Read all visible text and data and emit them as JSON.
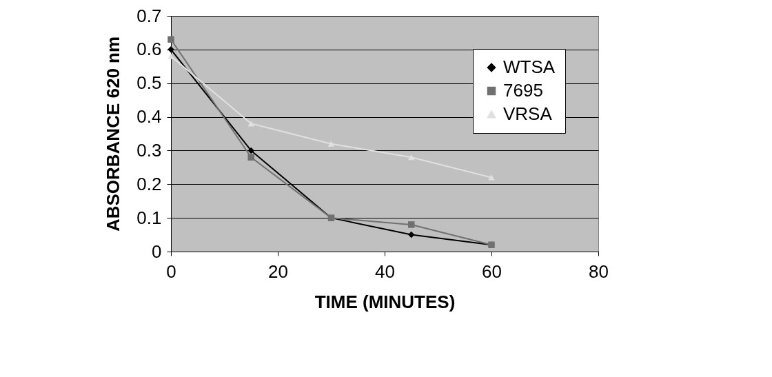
{
  "chart_data": {
    "type": "line",
    "xlabel": "TIME (MINUTES)",
    "ylabel": "ABSORBANCE 620 nm",
    "x": [
      0,
      15,
      30,
      45,
      60
    ],
    "series": [
      {
        "name": "WTSA",
        "color": "#000000",
        "marker": "diamond",
        "values": [
          0.6,
          0.3,
          0.1,
          0.05,
          0.02
        ]
      },
      {
        "name": "7695",
        "color": "#707070",
        "marker": "square",
        "values": [
          0.63,
          0.28,
          0.1,
          0.08,
          0.02
        ]
      },
      {
        "name": "VRSA",
        "color": "#e0e0e0",
        "marker": "triangle",
        "values": [
          0.58,
          0.38,
          0.32,
          0.28,
          0.22
        ]
      }
    ],
    "xlim": [
      0,
      80
    ],
    "xticks": [
      0,
      20,
      40,
      60,
      80
    ],
    "ylim": [
      0,
      0.7
    ],
    "yticks": [
      0,
      0.1,
      0.2,
      0.3,
      0.4,
      0.5,
      0.6,
      0.7
    ],
    "grid": "y",
    "legend": "top right"
  }
}
